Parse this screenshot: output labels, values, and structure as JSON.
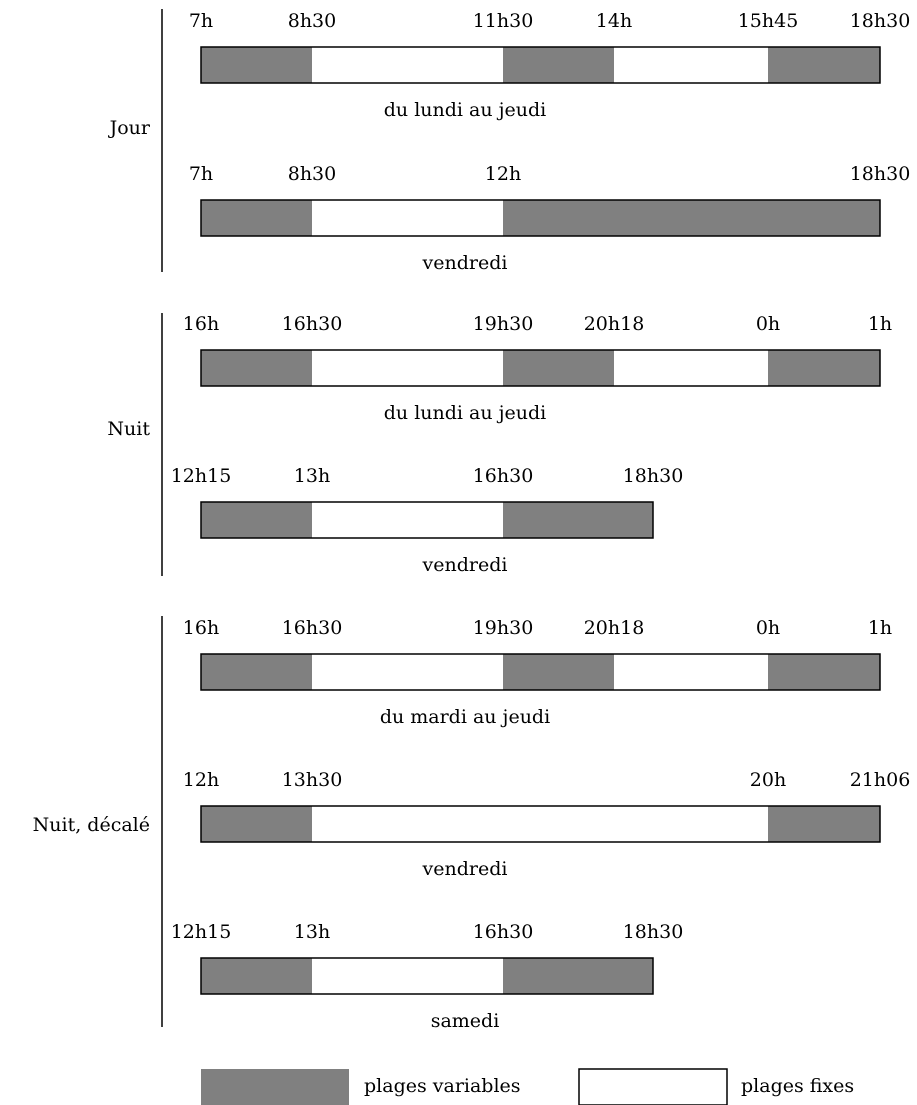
{
  "colors": {
    "variable": "#808080",
    "fixed": "#ffffff",
    "border": "#000000"
  },
  "scale": {
    "end_time": "18h30"
  },
  "groups": [
    {
      "label": "Jour",
      "rows": [
        {
          "caption": "du lundi au jeudi",
          "ticks": [
            "7h",
            "8h30",
            "11h30",
            "14h",
            "15h45",
            "18h30"
          ],
          "segments": [
            "variable",
            "fixed",
            "variable",
            "fixed",
            "variable"
          ]
        },
        {
          "caption": "vendredi",
          "ticks": [
            "7h",
            "8h30",
            "12h",
            "18h30"
          ],
          "segments": [
            "variable",
            "fixed",
            "variable"
          ]
        }
      ]
    },
    {
      "label": "Nuit",
      "rows": [
        {
          "caption": "du lundi au jeudi",
          "ticks": [
            "16h",
            "16h30",
            "19h30",
            "20h18",
            "0h",
            "1h"
          ],
          "segments": [
            "variable",
            "fixed",
            "variable",
            "fixed",
            "variable"
          ]
        },
        {
          "caption": "vendredi",
          "ticks": [
            "12h15",
            "13h",
            "16h30",
            "18h30"
          ],
          "segments": [
            "variable",
            "fixed",
            "variable"
          ]
        }
      ]
    },
    {
      "label": "Nuit, décalé",
      "rows": [
        {
          "caption": "du mardi au jeudi",
          "ticks": [
            "16h",
            "16h30",
            "19h30",
            "20h18",
            "0h",
            "1h"
          ],
          "segments": [
            "variable",
            "fixed",
            "variable",
            "fixed",
            "variable"
          ]
        },
        {
          "caption": "vendredi",
          "ticks": [
            "12h",
            "13h30",
            "20h",
            "21h06"
          ],
          "segments": [
            "variable",
            "fixed",
            "variable"
          ]
        },
        {
          "caption": "samedi",
          "ticks": [
            "12h15",
            "13h",
            "16h30",
            "18h30"
          ],
          "segments": [
            "variable",
            "fixed",
            "variable"
          ]
        }
      ]
    }
  ],
  "legend": {
    "variable_label": "plages variables",
    "fixed_label": "plages fixes"
  }
}
